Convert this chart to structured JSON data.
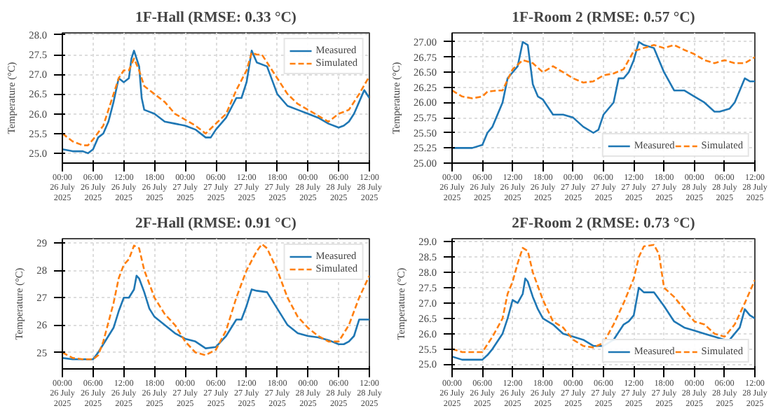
{
  "chart_data": [
    {
      "type": "line",
      "title": "1F-Hall (RMSE: 0.33 °C)",
      "ylabel": "Temperature (°C)",
      "grid": true,
      "legend": "top right",
      "xlim": [
        "2025-07-26T00:00",
        "2025-07-28T12:00"
      ],
      "ylim": [
        24.75,
        28.05
      ],
      "xticks": [
        {
          "value": "2025-07-26T00:00",
          "label": "00:00\n26 July\n2025"
        },
        {
          "value": "2025-07-26T06:00",
          "label": "06:00\n26 July\n2025"
        },
        {
          "value": "2025-07-26T12:00",
          "label": "12:00\n26 July\n2025"
        },
        {
          "value": "2025-07-26T18:00",
          "label": "18:00\n26 July\n2025"
        },
        {
          "value": "2025-07-27T00:00",
          "label": "00:00\n27 July\n2025"
        },
        {
          "value": "2025-07-27T06:00",
          "label": "06:00\n27 July\n2025"
        },
        {
          "value": "2025-07-27T12:00",
          "label": "12:00\n27 July\n2025"
        },
        {
          "value": "2025-07-27T18:00",
          "label": "18:00\n27 July\n2025"
        },
        {
          "value": "2025-07-28T00:00",
          "label": "00:00\n28 July\n2025"
        },
        {
          "value": "2025-07-28T06:00",
          "label": "06:00\n28 July\n2025"
        },
        {
          "value": "2025-07-28T12:00",
          "label": "12:00\n28 July\n2025"
        }
      ],
      "yticks": [
        {
          "value": 25,
          "label": "25.0"
        },
        25.5,
        {
          "value": 26,
          "label": "26.0"
        },
        26.5,
        {
          "value": 27,
          "label": "27.0"
        },
        27.5,
        {
          "value": 28,
          "label": "28.0"
        }
      ],
      "series": [
        {
          "name": "Measured",
          "color": "#1f77b4",
          "line_style": "solid",
          "x": [
            "2025-07-26T00:00",
            "2025-07-26T02:00",
            "2025-07-26T04:00",
            "2025-07-26T05:00",
            "2025-07-26T06:00",
            "2025-07-26T07:00",
            "2025-07-26T08:00",
            "2025-07-26T09:00",
            "2025-07-26T10:00",
            "2025-07-26T11:00",
            "2025-07-26T12:00",
            "2025-07-26T13:00",
            "2025-07-26T13:30",
            "2025-07-26T14:00",
            "2025-07-26T15:00",
            "2025-07-26T15:30",
            "2025-07-26T16:00",
            "2025-07-26T18:00",
            "2025-07-26T20:00",
            "2025-07-26T22:00",
            "2025-07-27T00:00",
            "2025-07-27T02:00",
            "2025-07-27T04:00",
            "2025-07-27T05:00",
            "2025-07-27T06:00",
            "2025-07-27T08:00",
            "2025-07-27T10:00",
            "2025-07-27T11:00",
            "2025-07-27T12:00",
            "2025-07-27T13:00",
            "2025-07-27T14:00",
            "2025-07-27T16:00",
            "2025-07-27T18:00",
            "2025-07-27T20:00",
            "2025-07-27T22:00",
            "2025-07-28T00:00",
            "2025-07-28T02:00",
            "2025-07-28T04:00",
            "2025-07-28T06:00",
            "2025-07-28T07:00",
            "2025-07-28T08:00",
            "2025-07-28T09:00",
            "2025-07-28T10:00",
            "2025-07-28T11:00",
            "2025-07-28T12:00"
          ],
          "values": [
            25.1,
            25.05,
            25.05,
            25.0,
            25.1,
            25.4,
            25.5,
            25.8,
            26.3,
            26.9,
            26.8,
            26.9,
            27.4,
            27.6,
            27.2,
            26.4,
            26.1,
            26.0,
            25.8,
            25.75,
            25.7,
            25.6,
            25.4,
            25.4,
            25.6,
            25.9,
            26.4,
            26.4,
            26.8,
            27.6,
            27.3,
            27.2,
            26.5,
            26.2,
            26.1,
            26.0,
            25.9,
            25.75,
            25.65,
            25.7,
            25.8,
            26.0,
            26.3,
            26.6,
            26.4
          ]
        },
        {
          "name": "Simulated",
          "color": "#ff7f0e",
          "line_style": "dashed",
          "x": [
            "2025-07-26T00:00",
            "2025-07-26T02:00",
            "2025-07-26T04:00",
            "2025-07-26T05:00",
            "2025-07-26T06:00",
            "2025-07-26T08:00",
            "2025-07-26T10:00",
            "2025-07-26T11:00",
            "2025-07-26T12:00",
            "2025-07-26T13:00",
            "2025-07-26T14:00",
            "2025-07-26T15:00",
            "2025-07-26T16:00",
            "2025-07-26T18:00",
            "2025-07-26T20:00",
            "2025-07-26T22:00",
            "2025-07-27T00:00",
            "2025-07-27T02:00",
            "2025-07-27T04:00",
            "2025-07-27T06:00",
            "2025-07-27T08:00",
            "2025-07-27T10:00",
            "2025-07-27T12:00",
            "2025-07-27T13:00",
            "2025-07-27T14:00",
            "2025-07-27T15:00",
            "2025-07-27T16:00",
            "2025-07-27T18:00",
            "2025-07-27T20:00",
            "2025-07-27T22:00",
            "2025-07-28T00:00",
            "2025-07-28T02:00",
            "2025-07-28T04:00",
            "2025-07-28T06:00",
            "2025-07-28T08:00",
            "2025-07-28T10:00",
            "2025-07-28T12:00"
          ],
          "values": [
            25.5,
            25.3,
            25.2,
            25.2,
            25.35,
            25.7,
            26.5,
            26.9,
            27.1,
            27.1,
            27.4,
            27.1,
            26.7,
            26.5,
            26.3,
            26.0,
            25.85,
            25.7,
            25.5,
            25.75,
            26.0,
            26.6,
            27.1,
            27.55,
            27.5,
            27.5,
            27.3,
            26.9,
            26.5,
            26.25,
            26.1,
            25.95,
            25.8,
            26.0,
            26.1,
            26.5,
            26.95
          ]
        }
      ]
    },
    {
      "type": "line",
      "title": "1F-Room 2 (RMSE: 0.57 °C)",
      "ylabel": "Temperature (°C)",
      "grid": true,
      "legend": "bottom right",
      "xlim": [
        "2025-07-26T00:00",
        "2025-07-28T12:00"
      ],
      "ylim": [
        25.0,
        27.15
      ],
      "xticks": [
        {
          "value": "2025-07-26T00:00",
          "label": "00:00\n26 July\n2025"
        },
        {
          "value": "2025-07-26T06:00",
          "label": "06:00\n26 July\n2025"
        },
        {
          "value": "2025-07-26T12:00",
          "label": "12:00\n26 July\n2025"
        },
        {
          "value": "2025-07-26T18:00",
          "label": "18:00\n26 July\n2025"
        },
        {
          "value": "2025-07-27T00:00",
          "label": "00:00\n27 July\n2025"
        },
        {
          "value": "2025-07-27T06:00",
          "label": "06:00\n27 July\n2025"
        },
        {
          "value": "2025-07-27T12:00",
          "label": "12:00\n27 July\n2025"
        },
        {
          "value": "2025-07-27T18:00",
          "label": "18:00\n27 July\n2025"
        },
        {
          "value": "2025-07-28T00:00",
          "label": "00:00\n28 July\n2025"
        },
        {
          "value": "2025-07-28T06:00",
          "label": "06:00\n28 July\n2025"
        },
        {
          "value": "2025-07-28T12:00",
          "label": "12:00\n28 July\n2025"
        }
      ],
      "yticks": [
        {
          "value": 25,
          "label": "25.00"
        },
        25.25,
        {
          "value": 25.5,
          "label": "25.50"
        },
        25.75,
        {
          "value": 26,
          "label": "26.00"
        },
        26.25,
        {
          "value": 26.5,
          "label": "26.50"
        },
        26.75,
        {
          "value": 27,
          "label": "27.00"
        }
      ],
      "series": [
        {
          "name": "Measured",
          "color": "#1f77b4",
          "line_style": "solid",
          "x": [
            "2025-07-26T00:00",
            "2025-07-26T02:00",
            "2025-07-26T04:00",
            "2025-07-26T06:00",
            "2025-07-26T07:00",
            "2025-07-26T08:00",
            "2025-07-26T10:00",
            "2025-07-26T11:00",
            "2025-07-26T12:00",
            "2025-07-26T13:00",
            "2025-07-26T14:00",
            "2025-07-26T15:00",
            "2025-07-26T16:00",
            "2025-07-26T17:00",
            "2025-07-26T18:00",
            "2025-07-26T20:00",
            "2025-07-26T22:00",
            "2025-07-27T00:00",
            "2025-07-27T02:00",
            "2025-07-27T04:00",
            "2025-07-27T05:00",
            "2025-07-27T06:00",
            "2025-07-27T08:00",
            "2025-07-27T09:00",
            "2025-07-27T10:00",
            "2025-07-27T11:00",
            "2025-07-27T12:00",
            "2025-07-27T13:00",
            "2025-07-27T14:00",
            "2025-07-27T16:00",
            "2025-07-27T18:00",
            "2025-07-27T20:00",
            "2025-07-27T22:00",
            "2025-07-28T00:00",
            "2025-07-28T02:00",
            "2025-07-28T04:00",
            "2025-07-28T05:00",
            "2025-07-28T07:00",
            "2025-07-28T08:00",
            "2025-07-28T09:00",
            "2025-07-28T10:00",
            "2025-07-28T11:00",
            "2025-07-28T12:00"
          ],
          "values": [
            25.25,
            25.25,
            25.25,
            25.3,
            25.5,
            25.6,
            26.0,
            26.4,
            26.5,
            26.6,
            27.0,
            26.95,
            26.3,
            26.1,
            26.05,
            25.8,
            25.8,
            25.75,
            25.6,
            25.5,
            25.55,
            25.8,
            26.0,
            26.4,
            26.4,
            26.5,
            26.7,
            27.0,
            26.95,
            26.9,
            26.5,
            26.2,
            26.2,
            26.1,
            26.0,
            25.85,
            25.85,
            25.9,
            26.0,
            26.2,
            26.4,
            26.35,
            26.35
          ]
        },
        {
          "name": "Simulated",
          "color": "#ff7f0e",
          "line_style": "dashed",
          "x": [
            "2025-07-26T00:00",
            "2025-07-26T02:00",
            "2025-07-26T04:00",
            "2025-07-26T06:00",
            "2025-07-26T07:00",
            "2025-07-26T09:00",
            "2025-07-26T10:00",
            "2025-07-26T12:00",
            "2025-07-26T14:00",
            "2025-07-26T16:00",
            "2025-07-26T18:00",
            "2025-07-26T20:00",
            "2025-07-26T22:00",
            "2025-07-27T00:00",
            "2025-07-27T02:00",
            "2025-07-27T04:00",
            "2025-07-27T06:00",
            "2025-07-27T08:00",
            "2025-07-27T10:00",
            "2025-07-27T12:00",
            "2025-07-27T14:00",
            "2025-07-27T16:00",
            "2025-07-27T18:00",
            "2025-07-27T20:00",
            "2025-07-27T22:00",
            "2025-07-28T00:00",
            "2025-07-28T02:00",
            "2025-07-28T04:00",
            "2025-07-28T06:00",
            "2025-07-28T08:00",
            "2025-07-28T10:00",
            "2025-07-28T12:00"
          ],
          "values": [
            26.2,
            26.1,
            26.07,
            26.1,
            26.18,
            26.2,
            26.2,
            26.55,
            26.7,
            26.65,
            26.5,
            26.6,
            26.5,
            26.4,
            26.33,
            26.35,
            26.45,
            26.48,
            26.55,
            26.85,
            26.9,
            26.95,
            26.9,
            26.95,
            26.87,
            26.8,
            26.7,
            26.65,
            26.7,
            26.65,
            26.65,
            26.75
          ]
        }
      ]
    },
    {
      "type": "line",
      "title": "2F-Hall (RMSE: 0.91 °C)",
      "ylabel": "Temperature (°C)",
      "grid": true,
      "legend": "top right",
      "xlim": [
        "2025-07-26T00:00",
        "2025-07-28T12:00"
      ],
      "ylim": [
        24.4,
        29.15
      ],
      "xticks": [
        {
          "value": "2025-07-26T00:00",
          "label": "00:00\n26 July\n2025"
        },
        {
          "value": "2025-07-26T06:00",
          "label": "06:00\n26 July\n2025"
        },
        {
          "value": "2025-07-26T12:00",
          "label": "12:00\n26 July\n2025"
        },
        {
          "value": "2025-07-26T18:00",
          "label": "18:00\n26 July\n2025"
        },
        {
          "value": "2025-07-27T00:00",
          "label": "00:00\n27 July\n2025"
        },
        {
          "value": "2025-07-27T06:00",
          "label": "06:00\n27 July\n2025"
        },
        {
          "value": "2025-07-27T12:00",
          "label": "12:00\n27 July\n2025"
        },
        {
          "value": "2025-07-27T18:00",
          "label": "18:00\n27 July\n2025"
        },
        {
          "value": "2025-07-28T00:00",
          "label": "00:00\n28 July\n2025"
        },
        {
          "value": "2025-07-28T06:00",
          "label": "06:00\n28 July\n2025"
        },
        {
          "value": "2025-07-28T12:00",
          "label": "12:00\n28 July\n2025"
        }
      ],
      "yticks": [
        25,
        26,
        27,
        28,
        29
      ],
      "series": [
        {
          "name": "Measured",
          "color": "#1f77b4",
          "line_style": "solid",
          "x": [
            "2025-07-26T00:00",
            "2025-07-26T02:00",
            "2025-07-26T04:00",
            "2025-07-26T06:00",
            "2025-07-26T07:00",
            "2025-07-26T08:00",
            "2025-07-26T10:00",
            "2025-07-26T11:00",
            "2025-07-26T12:00",
            "2025-07-26T13:00",
            "2025-07-26T14:00",
            "2025-07-26T14:30",
            "2025-07-26T15:00",
            "2025-07-26T16:00",
            "2025-07-26T17:00",
            "2025-07-26T18:00",
            "2025-07-26T20:00",
            "2025-07-26T22:00",
            "2025-07-27T00:00",
            "2025-07-27T02:00",
            "2025-07-27T04:00",
            "2025-07-27T06:00",
            "2025-07-27T08:00",
            "2025-07-27T10:00",
            "2025-07-27T11:00",
            "2025-07-27T12:00",
            "2025-07-27T13:00",
            "2025-07-27T14:00",
            "2025-07-27T16:00",
            "2025-07-27T18:00",
            "2025-07-27T20:00",
            "2025-07-27T22:00",
            "2025-07-28T00:00",
            "2025-07-28T02:00",
            "2025-07-28T04:00",
            "2025-07-28T06:00",
            "2025-07-28T07:00",
            "2025-07-28T08:00",
            "2025-07-28T09:00",
            "2025-07-28T10:00",
            "2025-07-28T12:00"
          ],
          "values": [
            24.8,
            24.75,
            24.75,
            24.75,
            25.0,
            25.3,
            25.9,
            26.5,
            27.0,
            27.0,
            27.3,
            27.8,
            27.7,
            27.2,
            26.6,
            26.3,
            26.0,
            25.7,
            25.5,
            25.4,
            25.15,
            25.2,
            25.6,
            26.2,
            26.2,
            26.7,
            27.3,
            27.25,
            27.2,
            26.6,
            26.0,
            25.7,
            25.6,
            25.55,
            25.45,
            25.3,
            25.3,
            25.4,
            25.6,
            26.2,
            26.2
          ]
        },
        {
          "name": "Simulated",
          "color": "#ff7f0e",
          "line_style": "dashed",
          "x": [
            "2025-07-26T00:00",
            "2025-07-26T02:00",
            "2025-07-26T04:00",
            "2025-07-26T06:00",
            "2025-07-26T07:00",
            "2025-07-26T08:00",
            "2025-07-26T10:00",
            "2025-07-26T11:00",
            "2025-07-26T12:00",
            "2025-07-26T13:00",
            "2025-07-26T14:00",
            "2025-07-26T15:00",
            "2025-07-26T16:00",
            "2025-07-26T18:00",
            "2025-07-26T20:00",
            "2025-07-26T22:00",
            "2025-07-27T00:00",
            "2025-07-27T02:00",
            "2025-07-27T04:00",
            "2025-07-27T06:00",
            "2025-07-27T08:00",
            "2025-07-27T10:00",
            "2025-07-27T12:00",
            "2025-07-27T14:00",
            "2025-07-27T15:00",
            "2025-07-27T16:00",
            "2025-07-27T18:00",
            "2025-07-27T20:00",
            "2025-07-27T22:00",
            "2025-07-28T00:00",
            "2025-07-28T02:00",
            "2025-07-28T04:00",
            "2025-07-28T06:00",
            "2025-07-28T08:00",
            "2025-07-28T10:00",
            "2025-07-28T12:00"
          ],
          "values": [
            25.0,
            24.8,
            24.75,
            24.75,
            24.9,
            25.4,
            26.8,
            27.7,
            28.2,
            28.4,
            28.9,
            28.8,
            28.0,
            27.0,
            26.4,
            26.0,
            25.4,
            25.0,
            24.9,
            25.1,
            25.8,
            27.0,
            28.0,
            28.7,
            28.95,
            28.8,
            28.0,
            27.0,
            26.3,
            25.9,
            25.6,
            25.4,
            25.4,
            26.0,
            27.0,
            27.8
          ]
        }
      ]
    },
    {
      "type": "line",
      "title": "2F-Room 2 (RMSE: 0.73 °C)",
      "ylabel": "Temperature (°C)",
      "grid": true,
      "legend": "bottom right",
      "xlim": [
        "2025-07-26T00:00",
        "2025-07-28T12:00"
      ],
      "ylim": [
        24.85,
        29.1
      ],
      "xticks": [
        {
          "value": "2025-07-26T00:00",
          "label": "00:00\n26 July\n2025"
        },
        {
          "value": "2025-07-26T06:00",
          "label": "06:00\n26 July\n2025"
        },
        {
          "value": "2025-07-26T12:00",
          "label": "12:00\n26 July\n2025"
        },
        {
          "value": "2025-07-26T18:00",
          "label": "18:00\n26 July\n2025"
        },
        {
          "value": "2025-07-27T00:00",
          "label": "00:00\n27 July\n2025"
        },
        {
          "value": "2025-07-27T06:00",
          "label": "06:00\n27 July\n2025"
        },
        {
          "value": "2025-07-27T12:00",
          "label": "12:00\n27 July\n2025"
        },
        {
          "value": "2025-07-27T18:00",
          "label": "18:00\n27 July\n2025"
        },
        {
          "value": "2025-07-28T00:00",
          "label": "00:00\n28 July\n2025"
        },
        {
          "value": "2025-07-28T06:00",
          "label": "06:00\n28 July\n2025"
        },
        {
          "value": "2025-07-28T12:00",
          "label": "12:00\n28 July\n2025"
        }
      ],
      "yticks": [
        {
          "value": 25,
          "label": "25.0"
        },
        25.5,
        {
          "value": 26,
          "label": "26.0"
        },
        26.5,
        {
          "value": 27,
          "label": "27.0"
        },
        27.5,
        {
          "value": 28,
          "label": "28.0"
        },
        28.5,
        {
          "value": 29,
          "label": "29.0"
        }
      ],
      "series": [
        {
          "name": "Measured",
          "color": "#1f77b4",
          "line_style": "solid",
          "x": [
            "2025-07-26T00:00",
            "2025-07-26T02:00",
            "2025-07-26T04:00",
            "2025-07-26T06:00",
            "2025-07-26T07:00",
            "2025-07-26T08:00",
            "2025-07-26T10:00",
            "2025-07-26T11:00",
            "2025-07-26T12:00",
            "2025-07-26T13:00",
            "2025-07-26T14:00",
            "2025-07-26T14:30",
            "2025-07-26T15:00",
            "2025-07-26T16:00",
            "2025-07-26T17:00",
            "2025-07-26T18:00",
            "2025-07-26T20:00",
            "2025-07-26T22:00",
            "2025-07-27T00:00",
            "2025-07-27T02:00",
            "2025-07-27T04:00",
            "2025-07-27T06:00",
            "2025-07-27T08:00",
            "2025-07-27T10:00",
            "2025-07-27T11:00",
            "2025-07-27T12:00",
            "2025-07-27T13:00",
            "2025-07-27T14:00",
            "2025-07-27T16:00",
            "2025-07-27T18:00",
            "2025-07-27T20:00",
            "2025-07-27T22:00",
            "2025-07-28T00:00",
            "2025-07-28T02:00",
            "2025-07-28T04:00",
            "2025-07-28T06:00",
            "2025-07-28T07:00",
            "2025-07-28T08:00",
            "2025-07-28T09:00",
            "2025-07-28T10:00",
            "2025-07-28T11:00",
            "2025-07-28T12:00"
          ],
          "values": [
            25.25,
            25.15,
            25.15,
            25.15,
            25.3,
            25.5,
            26.0,
            26.5,
            27.1,
            27.0,
            27.3,
            27.8,
            27.7,
            27.2,
            26.8,
            26.5,
            26.3,
            26.0,
            25.9,
            25.8,
            25.6,
            25.6,
            25.8,
            26.3,
            26.4,
            26.6,
            27.5,
            27.35,
            27.35,
            26.9,
            26.4,
            26.2,
            26.1,
            26.0,
            25.9,
            25.8,
            25.8,
            26.0,
            26.2,
            26.8,
            26.6,
            26.5
          ]
        },
        {
          "name": "Simulated",
          "color": "#ff7f0e",
          "line_style": "dashed",
          "x": [
            "2025-07-26T00:00",
            "2025-07-26T02:00",
            "2025-07-26T04:00",
            "2025-07-26T06:00",
            "2025-07-26T08:00",
            "2025-07-26T10:00",
            "2025-07-26T11:00",
            "2025-07-26T12:00",
            "2025-07-26T13:00",
            "2025-07-26T14:00",
            "2025-07-26T15:00",
            "2025-07-26T16:00",
            "2025-07-26T18:00",
            "2025-07-26T20:00",
            "2025-07-26T22:00",
            "2025-07-27T00:00",
            "2025-07-27T02:00",
            "2025-07-27T04:00",
            "2025-07-27T06:00",
            "2025-07-27T08:00",
            "2025-07-27T10:00",
            "2025-07-27T12:00",
            "2025-07-27T13:00",
            "2025-07-27T14:00",
            "2025-07-27T16:00",
            "2025-07-27T17:00",
            "2025-07-27T18:00",
            "2025-07-27T20:00",
            "2025-07-27T22:00",
            "2025-07-28T00:00",
            "2025-07-28T02:00",
            "2025-07-28T04:00",
            "2025-07-28T06:00",
            "2025-07-28T08:00",
            "2025-07-28T10:00",
            "2025-07-28T12:00"
          ],
          "values": [
            25.5,
            25.4,
            25.4,
            25.4,
            25.9,
            26.5,
            27.3,
            27.7,
            28.3,
            28.8,
            28.7,
            28.0,
            27.1,
            26.4,
            26.2,
            25.8,
            25.6,
            25.55,
            25.7,
            26.3,
            27.0,
            27.8,
            28.5,
            28.85,
            28.9,
            28.6,
            27.5,
            27.2,
            26.8,
            26.4,
            26.3,
            26.0,
            25.9,
            26.3,
            27.0,
            27.75
          ]
        }
      ]
    }
  ]
}
